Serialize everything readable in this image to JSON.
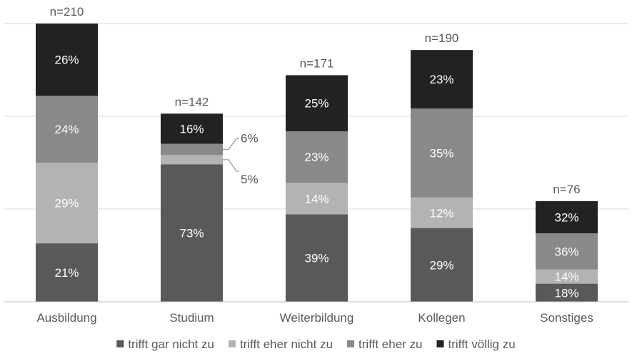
{
  "chart_data": {
    "type": "bar",
    "stacked": true,
    "categories": [
      "Ausbildung",
      "Studium",
      "Weiterbildung",
      "Kollegen",
      "Sonstiges"
    ],
    "n_labels": [
      "n=210",
      "n=142",
      "n=171",
      "n=190",
      "n=76"
    ],
    "n_values": [
      210,
      142,
      171,
      190,
      76
    ],
    "series": [
      {
        "name": "trifft gar nicht zu",
        "color": "#595959",
        "label_color": "#ffffff",
        "values": [
          21,
          73,
          39,
          29,
          18
        ],
        "labels": [
          "21%",
          "73%",
          "39%",
          "29%",
          "18%"
        ]
      },
      {
        "name": "trifft eher nicht zu",
        "color": "#b3b3b3",
        "label_color": "#ffffff",
        "values": [
          29,
          5,
          14,
          12,
          14
        ],
        "labels": [
          "29%",
          "5%",
          "14%",
          "12%",
          "14%"
        ]
      },
      {
        "name": "trifft eher zu",
        "color": "#898989",
        "label_color": "#ffffff",
        "values": [
          24,
          6,
          23,
          35,
          36
        ],
        "labels": [
          "24%",
          "6%",
          "23%",
          "35%",
          "36%"
        ]
      },
      {
        "name": "trifft völlig zu",
        "color": "#222222",
        "label_color": "#ffffff",
        "values": [
          26,
          16,
          25,
          23,
          32
        ],
        "labels": [
          "26%",
          "16%",
          "25%",
          "23%",
          "32%"
        ]
      }
    ],
    "ylim": [
      0,
      210
    ],
    "gridlines": [
      0,
      70,
      140,
      210
    ],
    "grid": true,
    "legend_position": "bottom",
    "outside_labels": [
      {
        "category": "Studium",
        "series": "trifft eher zu",
        "text": "6%"
      },
      {
        "category": "Studium",
        "series": "trifft eher nicht zu",
        "text": "5%"
      }
    ],
    "colors": {
      "grid": "#d9d9d9",
      "axis": "#bfbfbf",
      "text": "#595959",
      "leader": "#a6a6a6"
    }
  }
}
